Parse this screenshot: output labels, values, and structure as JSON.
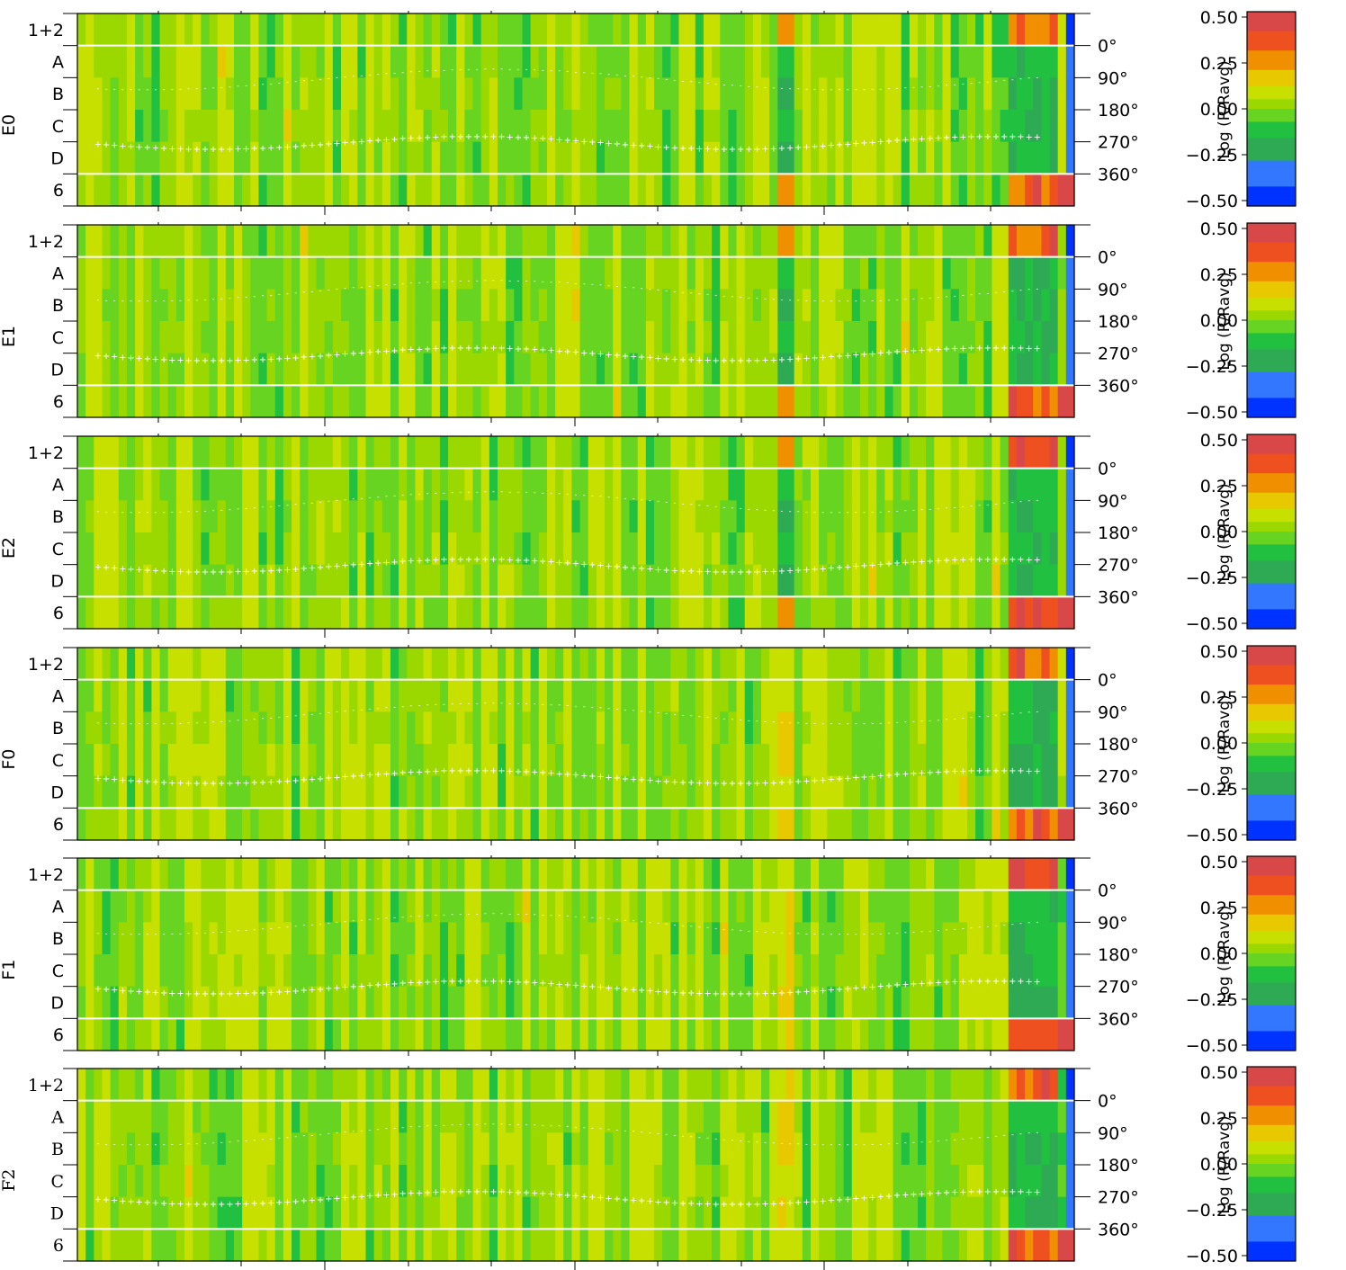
{
  "chart_data": [
    {
      "type": "heatmap",
      "panel": "E0",
      "rows": [
        "1+2",
        "A",
        "B",
        "C",
        "D",
        "6"
      ],
      "angle_ticks": [
        "0°",
        "90°",
        "180°",
        "270°",
        "360°"
      ],
      "colorbar": {
        "label": "Log (R/Ravg)",
        "ticks": [
          "0.50",
          "0.25",
          "0.00",
          "−0.25",
          "−0.50"
        ],
        "range": [
          -0.5,
          0.5
        ]
      },
      "hot_columns": [
        {
          "index": 86,
          "value": 0.3
        },
        {
          "index": 114,
          "value": 0.35
        }
      ],
      "cold_columns": [
        {
          "index": 86,
          "rows": [
            "B",
            "D"
          ],
          "value": -0.2
        }
      ]
    },
    {
      "type": "heatmap",
      "panel": "E1",
      "rows": [
        "1+2",
        "A",
        "B",
        "C",
        "D",
        "6"
      ],
      "angle_ticks": [
        "0°",
        "90°",
        "180°",
        "270°",
        "360°"
      ],
      "colorbar": {
        "label": "Log (R/Ravg)",
        "ticks": [
          "0.50",
          "0.25",
          "0.00",
          "−0.25",
          "−0.50"
        ],
        "range": [
          -0.5,
          0.5
        ]
      }
    },
    {
      "type": "heatmap",
      "panel": "E2",
      "rows": [
        "1+2",
        "A",
        "B",
        "C",
        "D",
        "6"
      ],
      "angle_ticks": [
        "0°",
        "90°",
        "180°",
        "270°",
        "360°"
      ],
      "colorbar": {
        "label": "Log (R/Ravg)",
        "ticks": [
          "0.50",
          "0.25",
          "0.00",
          "−0.25",
          "−0.50"
        ],
        "range": [
          -0.5,
          0.5
        ]
      }
    },
    {
      "type": "heatmap",
      "panel": "F0",
      "rows": [
        "1+2",
        "A",
        "B",
        "C",
        "D",
        "6"
      ],
      "angle_ticks": [
        "0°",
        "90°",
        "180°",
        "270°",
        "360°"
      ],
      "colorbar": {
        "label": "Log (R/Ravg)",
        "ticks": [
          "0.50",
          "0.25",
          "0.00",
          "−0.25",
          "−0.50"
        ],
        "range": [
          -0.5,
          0.5
        ]
      }
    },
    {
      "type": "heatmap",
      "panel": "F1",
      "rows": [
        "1+2",
        "A",
        "B",
        "C",
        "D",
        "6"
      ],
      "angle_ticks": [
        "0°",
        "90°",
        "180°",
        "270°",
        "360°"
      ],
      "colorbar": {
        "label": "Log (R/Ravg)",
        "ticks": [
          "0.50",
          "0.25",
          "0.00",
          "−0.25",
          "−0.50"
        ],
        "range": [
          -0.5,
          0.5
        ]
      }
    },
    {
      "type": "heatmap",
      "panel": "F2",
      "rows": [
        "1+2",
        "A",
        "B",
        "C",
        "D",
        "6"
      ],
      "angle_ticks": [
        "0°",
        "90°",
        "180°",
        "270°",
        "360°"
      ],
      "colorbar": {
        "label": "Log (R/Ravg)",
        "ticks": [
          "0.50",
          "0.25",
          "0.00",
          "−0.25",
          "−0.50"
        ],
        "range": [
          -0.5,
          0.5
        ]
      }
    }
  ],
  "colors": {
    "scale": [
      "#0033ff",
      "#3377ff",
      "#2eaa55",
      "#22c040",
      "#66d420",
      "#9ad800",
      "#c8e000",
      "#e8c800",
      "#f09000",
      "#ee5020",
      "#d84848",
      "#bdbdbd"
    ],
    "separator": "#ffffff",
    "markers": "#ffffff"
  }
}
